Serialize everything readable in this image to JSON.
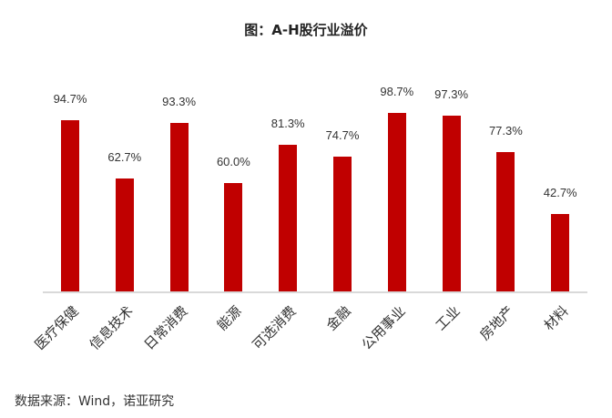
{
  "title": "图：A-H股行业溢价",
  "source": "数据来源：Wind，诺亚研究",
  "bar_color": "#c00000",
  "chart_data": {
    "type": "bar",
    "title": "图：A-H股行业溢价",
    "xlabel": "",
    "ylabel": "",
    "categories": [
      "医疗保健",
      "信息技术",
      "日常消费",
      "能源",
      "可选消费",
      "金融",
      "公用事业",
      "工业",
      "房地产",
      "材料"
    ],
    "values": [
      94.7,
      62.7,
      93.3,
      60.0,
      81.3,
      74.7,
      98.7,
      97.3,
      77.3,
      42.7
    ],
    "labels": [
      "94.7%",
      "62.7%",
      "93.3%",
      "60.0%",
      "81.3%",
      "74.7%",
      "98.7%",
      "97.3%",
      "77.3%",
      "42.7%"
    ],
    "unit": "%",
    "ylim": [
      0,
      100
    ],
    "grid": false,
    "legend": null,
    "x_tick_rotation": -45
  }
}
